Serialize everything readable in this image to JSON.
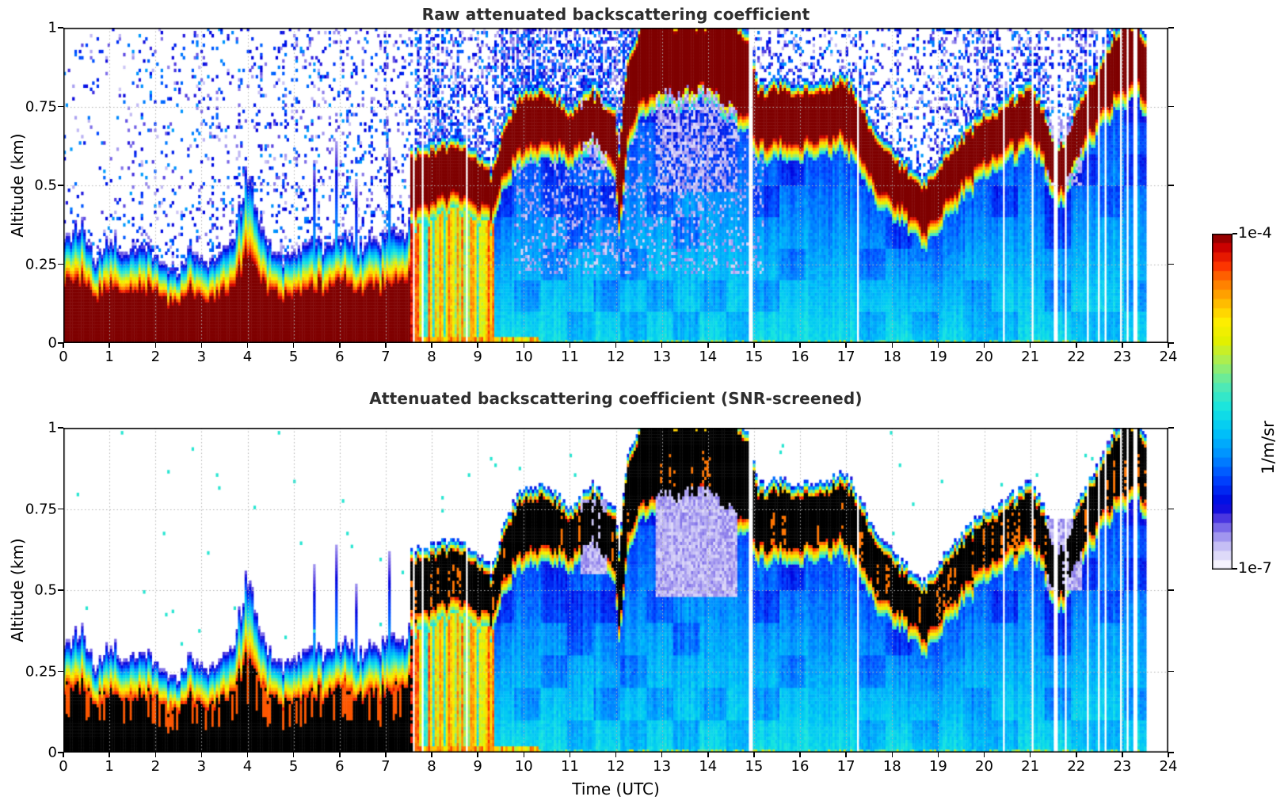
{
  "figure": {
    "type": "ceilometer backscatter time-height quicklook, two stacked heatmap panels sharing a colorbar"
  },
  "chart_data": {
    "type": "heatmap",
    "panels": [
      {
        "id": "raw",
        "title": "Raw attenuated backscattering coefficient",
        "saturation_color": "#7f0000",
        "noise_speckle_above_layers": true
      },
      {
        "id": "screened",
        "title": "Attenuated backscattering coefficient (SNR-screened)",
        "saturation_color": "#000000",
        "noise_speckle_above_layers": false
      }
    ],
    "time_axis": {
      "label": "Time (UTC)",
      "min": 0,
      "max": 24,
      "tick_values": [
        0,
        1,
        2,
        3,
        4,
        5,
        6,
        7,
        8,
        9,
        10,
        11,
        12,
        13,
        14,
        15,
        16,
        17,
        18,
        19,
        20,
        21,
        22,
        23,
        24
      ],
      "tick_labels": [
        "0",
        "1",
        "2",
        "3",
        "4",
        "5",
        "6",
        "7",
        "8",
        "9",
        "10",
        "11",
        "12",
        "13",
        "14",
        "15",
        "16",
        "17",
        "18",
        "19",
        "20",
        "21",
        "22",
        "23",
        "24"
      ],
      "grid": "dotted"
    },
    "altitude_axis": {
      "label": "Altitude (km)",
      "min": 0,
      "max": 1,
      "tick_values": [
        0,
        0.25,
        0.5,
        0.75,
        1
      ],
      "tick_labels": [
        "0",
        "0.25",
        "0.5",
        "0.75",
        "1"
      ],
      "grid": "dotted"
    },
    "colorbar": {
      "units_label": "1/m/sr",
      "top_label": "1e-4",
      "bottom_label": "1e-7",
      "scale": "log",
      "min": 1e-07,
      "max": 0.0001,
      "n_segments": 36
    },
    "colormap_stops": [
      [
        0.0,
        "#ffffff"
      ],
      [
        0.03,
        "#e9e6fb"
      ],
      [
        0.07,
        "#c4bdf5"
      ],
      [
        0.11,
        "#9183ec"
      ],
      [
        0.15,
        "#4f3ae0"
      ],
      [
        0.19,
        "#0000dd"
      ],
      [
        0.27,
        "#0044ff"
      ],
      [
        0.34,
        "#0090ff"
      ],
      [
        0.41,
        "#00c4f8"
      ],
      [
        0.48,
        "#16e5e0"
      ],
      [
        0.55,
        "#55eab0"
      ],
      [
        0.62,
        "#a8ee55"
      ],
      [
        0.68,
        "#e2f000"
      ],
      [
        0.74,
        "#ffee00"
      ],
      [
        0.8,
        "#ffb400"
      ],
      [
        0.86,
        "#ff7500"
      ],
      [
        0.91,
        "#fb2a00"
      ],
      [
        0.96,
        "#c80000"
      ],
      [
        1.0,
        "#7f0000"
      ]
    ],
    "grid_color": "#b4b4b4",
    "data_end_utc": 23.5,
    "features": {
      "boundary_layer": {
        "t_utc": [
          0,
          0.35,
          0.7,
          1.05,
          1.3,
          1.75,
          2.1,
          2.5,
          2.8,
          3.1,
          3.4,
          3.7,
          4.0,
          4.3,
          4.6,
          4.9,
          5.2,
          5.5,
          5.8,
          6.1,
          6.4,
          6.7,
          7.0,
          7.3,
          7.55
        ],
        "top_km": [
          0.32,
          0.38,
          0.27,
          0.34,
          0.28,
          0.32,
          0.27,
          0.23,
          0.3,
          0.26,
          0.28,
          0.33,
          0.55,
          0.35,
          0.28,
          0.27,
          0.31,
          0.33,
          0.3,
          0.34,
          0.3,
          0.32,
          0.35,
          0.34,
          0.38
        ]
      },
      "cloud_layer": {
        "t_utc": [
          7.55,
          8.0,
          8.5,
          9.0,
          9.3,
          9.6,
          10.0,
          10.5,
          11.0,
          11.5,
          12.0,
          12.08,
          12.15,
          12.3,
          12.6,
          13.0,
          13.5,
          14.0,
          14.5,
          14.9,
          15.1,
          15.5,
          16.0,
          16.5,
          17.0,
          17.4,
          17.7,
          18.0,
          18.4,
          18.7,
          19.0,
          19.5,
          20.0,
          20.5,
          21.0,
          21.3,
          21.6,
          21.9,
          22.2,
          22.5,
          22.8,
          23.1,
          23.3,
          23.5
        ],
        "base_km": [
          0.42,
          0.45,
          0.48,
          0.45,
          0.42,
          0.55,
          0.63,
          0.64,
          0.62,
          0.65,
          0.58,
          0.36,
          0.5,
          0.7,
          0.78,
          0.8,
          0.8,
          0.82,
          0.75,
          0.72,
          0.63,
          0.64,
          0.63,
          0.66,
          0.66,
          0.58,
          0.48,
          0.45,
          0.41,
          0.35,
          0.42,
          0.5,
          0.58,
          0.62,
          0.67,
          0.6,
          0.48,
          0.55,
          0.65,
          0.72,
          0.78,
          0.82,
          0.85,
          0.78
        ],
        "top_km": [
          0.58,
          0.6,
          0.62,
          0.58,
          0.52,
          0.68,
          0.78,
          0.78,
          0.72,
          0.78,
          0.72,
          0.55,
          0.75,
          0.9,
          1.0,
          1.0,
          1.0,
          1.0,
          1.0,
          0.95,
          0.78,
          0.8,
          0.78,
          0.8,
          0.82,
          0.72,
          0.62,
          0.58,
          0.52,
          0.48,
          0.55,
          0.63,
          0.7,
          0.74,
          0.8,
          0.72,
          0.6,
          0.68,
          0.78,
          0.85,
          0.95,
          1.0,
          1.0,
          0.95
        ]
      },
      "precipitation_utc": {
        "start": 7.55,
        "end": 9.35
      },
      "gaps_utc": [
        7.62,
        7.78,
        8.78,
        14.93,
        17.25,
        20.42,
        21.05,
        21.55,
        21.78,
        22.25,
        22.48,
        22.62,
        22.95,
        23.12,
        23.28
      ],
      "thin_plume_spikes_utc": [
        5.45,
        5.92,
        6.35,
        7.08
      ],
      "low_snr_patches": [
        {
          "t_utc": [
            11.25,
            11.8
          ],
          "z_km": [
            0.55,
            0.78
          ]
        },
        {
          "t_utc": [
            12.85,
            14.65
          ],
          "z_km": [
            0.48,
            0.82
          ]
        },
        {
          "t_utc": [
            21.35,
            22.15
          ],
          "z_km": [
            0.5,
            0.72
          ]
        }
      ]
    }
  }
}
